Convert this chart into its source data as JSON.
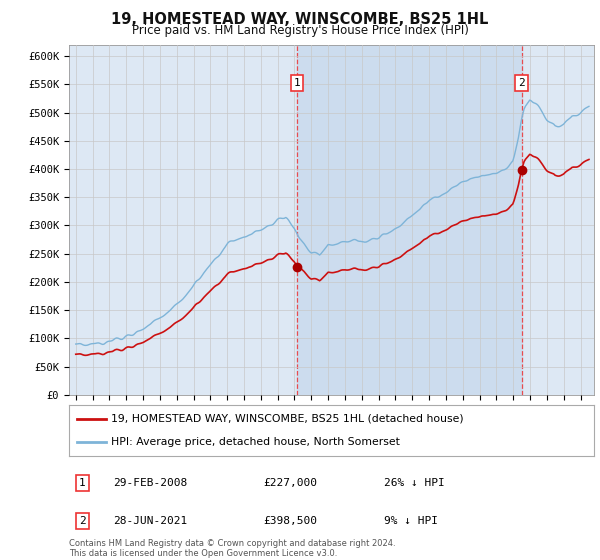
{
  "title": "19, HOMESTEAD WAY, WINSCOMBE, BS25 1HL",
  "subtitle": "Price paid vs. HM Land Registry's House Price Index (HPI)",
  "footnote": "Contains HM Land Registry data © Crown copyright and database right 2024.\nThis data is licensed under the Open Government Licence v3.0.",
  "legend_line1": "19, HOMESTEAD WAY, WINSCOMBE, BS25 1HL (detached house)",
  "legend_line2": "HPI: Average price, detached house, North Somerset",
  "sale1_date": "29-FEB-2008",
  "sale1_price_str": "£227,000",
  "sale1_hpi": "26% ↓ HPI",
  "sale1_year": 2008.17,
  "sale1_price": 227000,
  "sale2_date": "28-JUN-2021",
  "sale2_price_str": "£398,500",
  "sale2_hpi": "9% ↓ HPI",
  "sale2_year": 2021.5,
  "sale2_price": 398500,
  "ylim": [
    0,
    620000
  ],
  "yticks": [
    0,
    50000,
    100000,
    150000,
    200000,
    250000,
    300000,
    350000,
    400000,
    450000,
    500000,
    550000,
    600000
  ],
  "hpi_color": "#7eb4d8",
  "price_color": "#cc1111",
  "vline_color": "#ee3333",
  "marker_color": "#aa0000",
  "bg_color": "#dde8f4",
  "plot_bg": "#ffffff",
  "grid_color": "#c8c8c8",
  "shade_color": "#ccdcee"
}
